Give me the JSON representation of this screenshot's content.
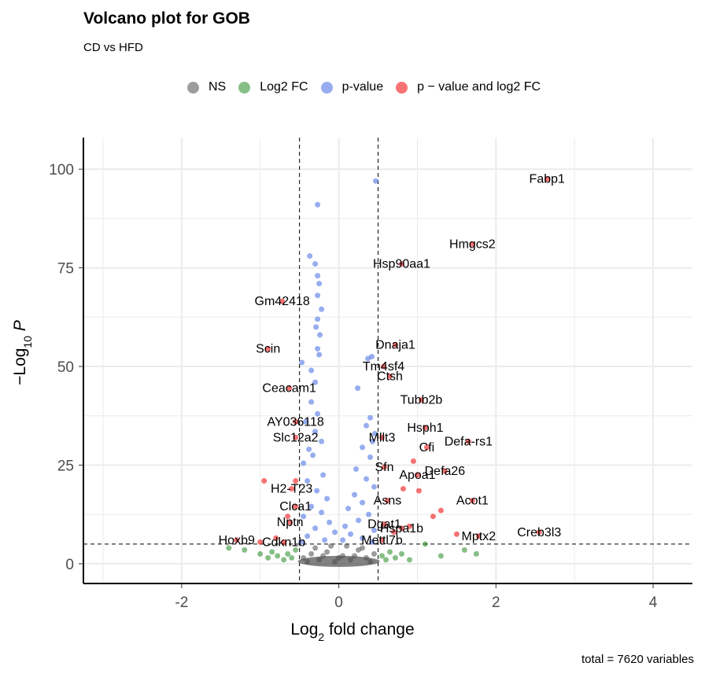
{
  "title": "Volcano plot for GOB",
  "subtitle": "CD vs HFD",
  "caption": "total = 7620 variables",
  "legend": [
    {
      "label": "NS",
      "color": "#4d4d4d"
    },
    {
      "label": "Log2 FC",
      "color": "#228b22"
    },
    {
      "label": "p-value",
      "color": "#4169e1"
    },
    {
      "label": "p − value and log2 FC",
      "color": "#ee0000"
    }
  ],
  "chart_data": {
    "type": "scatter",
    "xlabel": "Log2 fold change",
    "ylabel": "−Log10 P",
    "xlim": [
      -3.25,
      4.5
    ],
    "ylim": [
      -5,
      108
    ],
    "xticks": [
      -2,
      0,
      2,
      4
    ],
    "yticks": [
      0,
      25,
      50,
      75,
      100
    ],
    "thresholds": {
      "fc": [
        -0.5,
        0.5
      ],
      "p": 5
    },
    "grid": true,
    "legend_position": "top",
    "series": [
      {
        "name": "p − value and log2 FC",
        "points": [
          {
            "x": 2.65,
            "y": 97.5,
            "label": "Fabp1"
          },
          {
            "x": 1.7,
            "y": 81,
            "label": "Hmgcs2"
          },
          {
            "x": 0.8,
            "y": 76,
            "label": "Hsp90aa1"
          },
          {
            "x": -0.72,
            "y": 66.5,
            "label": "Gm42418"
          },
          {
            "x": -0.9,
            "y": 54.5,
            "label": "Scin"
          },
          {
            "x": 0.72,
            "y": 55.5,
            "label": "Dnaja1"
          },
          {
            "x": 0.57,
            "y": 50,
            "label": "Tm4sf4"
          },
          {
            "x": 0.65,
            "y": 47.5,
            "label": "Ctsh"
          },
          {
            "x": -0.63,
            "y": 44.5,
            "label": "Ceacam1"
          },
          {
            "x": 1.05,
            "y": 41.5,
            "label": "Tubb2b"
          },
          {
            "x": -0.55,
            "y": 36,
            "label": "AY036118"
          },
          {
            "x": 0.55,
            "y": 32,
            "label": "Mllt3"
          },
          {
            "x": 1.1,
            "y": 34.5,
            "label": "Hsph1"
          },
          {
            "x": -0.55,
            "y": 32,
            "label": "Slc12a2"
          },
          {
            "x": 1.65,
            "y": 31,
            "label": "Defa-rs1"
          },
          {
            "x": 1.12,
            "y": 29.5,
            "label": "Cfi"
          },
          {
            "x": 0.58,
            "y": 24.5,
            "label": "Sfn"
          },
          {
            "x": 1.35,
            "y": 23.5,
            "label": "Defa26"
          },
          {
            "x": 1.0,
            "y": 22.5,
            "label": "Apoa1"
          },
          {
            "x": -0.6,
            "y": 19,
            "label": "H2-T23"
          },
          {
            "x": 0.62,
            "y": 16,
            "label": "Asns"
          },
          {
            "x": 1.7,
            "y": 16,
            "label": "Acot1"
          },
          {
            "x": -0.55,
            "y": 14.5,
            "label": "Clca1"
          },
          {
            "x": -0.62,
            "y": 10.5,
            "label": "Nptn"
          },
          {
            "x": 0.58,
            "y": 10,
            "label": "Dgat1"
          },
          {
            "x": 0.8,
            "y": 9,
            "label": "Hspa1b"
          },
          {
            "x": 1.78,
            "y": 7,
            "label": "Mptx2"
          },
          {
            "x": 2.55,
            "y": 8,
            "label": "Creb3l3"
          },
          {
            "x": -1.3,
            "y": 6,
            "label": "Hoxb9"
          },
          {
            "x": -0.7,
            "y": 5.5,
            "label": "Cdkn1b"
          },
          {
            "x": 0.55,
            "y": 6,
            "label": "Mettl7b"
          },
          {
            "x": -0.95,
            "y": 21,
            "label": ""
          },
          {
            "x": -0.55,
            "y": 21,
            "label": ""
          },
          {
            "x": 0.95,
            "y": 26,
            "label": ""
          },
          {
            "x": 0.82,
            "y": 19,
            "label": ""
          },
          {
            "x": 1.02,
            "y": 18.5,
            "label": ""
          },
          {
            "x": 1.3,
            "y": 13.5,
            "label": ""
          },
          {
            "x": 1.5,
            "y": 7.5,
            "label": ""
          },
          {
            "x": -1.0,
            "y": 5.5,
            "label": ""
          },
          {
            "x": -0.8,
            "y": 6.5,
            "label": ""
          },
          {
            "x": 0.7,
            "y": 8,
            "label": ""
          },
          {
            "x": 0.9,
            "y": 9.5,
            "label": ""
          },
          {
            "x": 1.2,
            "y": 12,
            "label": ""
          },
          {
            "x": -0.65,
            "y": 12,
            "label": ""
          }
        ]
      },
      {
        "name": "p-value",
        "points": [
          {
            "x": 0.47,
            "y": 97
          },
          {
            "x": -0.27,
            "y": 91
          },
          {
            "x": -0.37,
            "y": 78
          },
          {
            "x": -0.3,
            "y": 76
          },
          {
            "x": -0.27,
            "y": 73
          },
          {
            "x": -0.25,
            "y": 71
          },
          {
            "x": -0.27,
            "y": 68
          },
          {
            "x": -0.22,
            "y": 64.5
          },
          {
            "x": -0.27,
            "y": 62
          },
          {
            "x": -0.29,
            "y": 60
          },
          {
            "x": -0.24,
            "y": 58
          },
          {
            "x": -0.27,
            "y": 54.5
          },
          {
            "x": -0.25,
            "y": 53
          },
          {
            "x": -0.47,
            "y": 51
          },
          {
            "x": -0.35,
            "y": 49
          },
          {
            "x": 0.37,
            "y": 52
          },
          {
            "x": 0.42,
            "y": 52.5
          },
          {
            "x": 0.24,
            "y": 44.5
          },
          {
            "x": -0.3,
            "y": 46
          },
          {
            "x": -0.35,
            "y": 41
          },
          {
            "x": -0.27,
            "y": 38
          },
          {
            "x": -0.42,
            "y": 36
          },
          {
            "x": 0.4,
            "y": 37
          },
          {
            "x": 0.35,
            "y": 35
          },
          {
            "x": 0.46,
            "y": 33
          },
          {
            "x": 0.43,
            "y": 31
          },
          {
            "x": -0.3,
            "y": 33.5
          },
          {
            "x": -0.22,
            "y": 31
          },
          {
            "x": -0.38,
            "y": 29
          },
          {
            "x": 0.3,
            "y": 29.5
          },
          {
            "x": -0.33,
            "y": 27.5
          },
          {
            "x": 0.4,
            "y": 27
          },
          {
            "x": -0.45,
            "y": 25.5
          },
          {
            "x": 0.22,
            "y": 24
          },
          {
            "x": -0.2,
            "y": 22.5
          },
          {
            "x": 0.35,
            "y": 21.5
          },
          {
            "x": -0.4,
            "y": 21
          },
          {
            "x": 0.45,
            "y": 19.5
          },
          {
            "x": -0.28,
            "y": 18.5
          },
          {
            "x": 0.2,
            "y": 17.5
          },
          {
            "x": -0.15,
            "y": 16.5
          },
          {
            "x": 0.3,
            "y": 15.5
          },
          {
            "x": -0.35,
            "y": 14.5
          },
          {
            "x": 0.12,
            "y": 14
          },
          {
            "x": -0.22,
            "y": 13
          },
          {
            "x": 0.38,
            "y": 12.5
          },
          {
            "x": -0.45,
            "y": 12
          },
          {
            "x": 0.25,
            "y": 11
          },
          {
            "x": -0.12,
            "y": 10.5
          },
          {
            "x": 0.08,
            "y": 9.5
          },
          {
            "x": -0.3,
            "y": 9
          },
          {
            "x": 0.45,
            "y": 8.5
          },
          {
            "x": -0.05,
            "y": 8
          },
          {
            "x": 0.15,
            "y": 7.5
          },
          {
            "x": -0.4,
            "y": 7
          },
          {
            "x": 0.3,
            "y": 6.5
          },
          {
            "x": -0.18,
            "y": 6
          },
          {
            "x": 0.05,
            "y": 6
          },
          {
            "x": -0.48,
            "y": 5.5
          },
          {
            "x": 0.42,
            "y": 5.5
          }
        ]
      },
      {
        "name": "Log2 FC",
        "points": [
          {
            "x": -1.4,
            "y": 4
          },
          {
            "x": -1.2,
            "y": 3.5
          },
          {
            "x": -1.0,
            "y": 2.5
          },
          {
            "x": -0.9,
            "y": 1.5
          },
          {
            "x": -0.85,
            "y": 3
          },
          {
            "x": -0.78,
            "y": 2
          },
          {
            "x": -0.7,
            "y": 1
          },
          {
            "x": -0.65,
            "y": 2.5
          },
          {
            "x": -0.6,
            "y": 1.5
          },
          {
            "x": -0.55,
            "y": 3.5
          },
          {
            "x": 0.55,
            "y": 2
          },
          {
            "x": 0.6,
            "y": 1
          },
          {
            "x": 0.65,
            "y": 3
          },
          {
            "x": 0.72,
            "y": 1.5
          },
          {
            "x": 0.8,
            "y": 2.5
          },
          {
            "x": 0.9,
            "y": 1
          },
          {
            "x": 1.1,
            "y": 5
          },
          {
            "x": 1.6,
            "y": 3.5
          },
          {
            "x": 1.75,
            "y": 2.5
          },
          {
            "x": 1.3,
            "y": 2
          }
        ]
      },
      {
        "name": "NS",
        "points": [
          {
            "x": -0.45,
            "y": 1.5
          },
          {
            "x": -0.35,
            "y": 2.5
          },
          {
            "x": -0.25,
            "y": 1
          },
          {
            "x": -0.15,
            "y": 3
          },
          {
            "x": -0.05,
            "y": 0.5
          },
          {
            "x": 0.05,
            "y": 2
          },
          {
            "x": 0.15,
            "y": 1
          },
          {
            "x": 0.25,
            "y": 3.5
          },
          {
            "x": 0.35,
            "y": 1.5
          },
          {
            "x": 0.45,
            "y": 2.5
          },
          {
            "x": -0.4,
            "y": 0.5
          },
          {
            "x": 0.4,
            "y": 0.5
          },
          {
            "x": -0.3,
            "y": 4
          },
          {
            "x": 0.3,
            "y": 4
          },
          {
            "x": 0.0,
            "y": 1.5
          },
          {
            "x": -0.2,
            "y": 2
          },
          {
            "x": 0.2,
            "y": 2
          },
          {
            "x": 0.1,
            "y": 4.5
          },
          {
            "x": -0.1,
            "y": 4.5
          }
        ]
      }
    ]
  }
}
